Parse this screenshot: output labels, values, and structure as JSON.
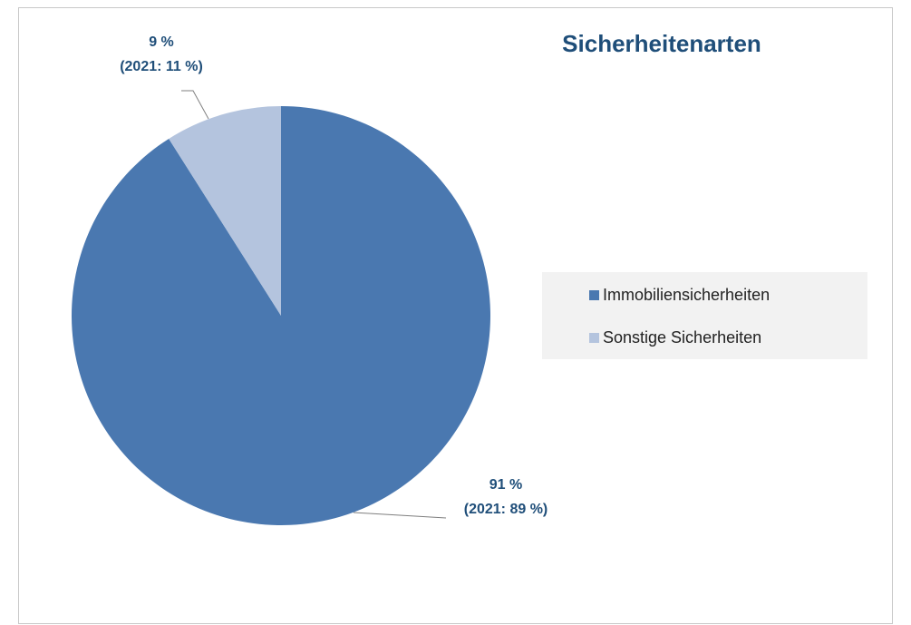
{
  "chart_data": {
    "type": "pie",
    "title": "Sicherheitenarten",
    "categories": [
      "Immobiliensicherheiten",
      "Sonstige Sicherheiten"
    ],
    "values": [
      91,
      9
    ],
    "value_labels": [
      "91 %",
      "9 %"
    ],
    "annotations": [
      "(2021: 89 %)",
      "(2021: 11 %)"
    ],
    "colors": [
      "#4a78b0",
      "#b4c4de"
    ],
    "legend": "right"
  }
}
